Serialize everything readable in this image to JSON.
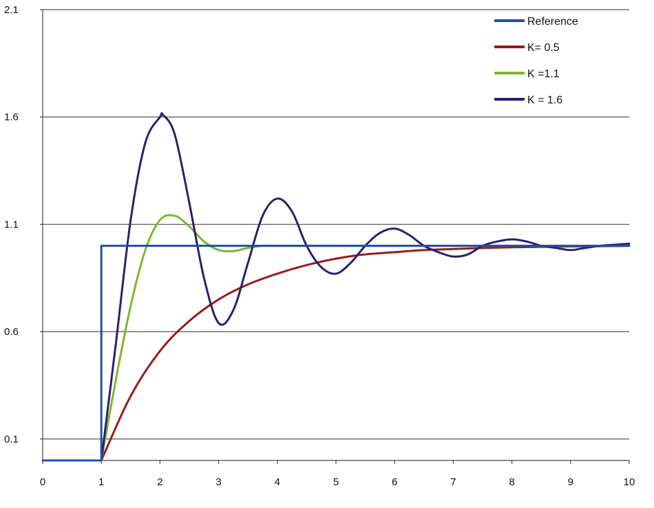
{
  "chart_data": {
    "type": "line",
    "title": "",
    "xlabel": "",
    "ylabel": "",
    "xlim": [
      0,
      10
    ],
    "ylim": [
      0,
      2.1
    ],
    "x_ticks": [
      0,
      1,
      2,
      3,
      4,
      5,
      6,
      7,
      8,
      9,
      10
    ],
    "x_tick_labels": [
      "0",
      "1",
      "2",
      "3",
      "4",
      "5",
      "6",
      "7",
      "8",
      "9",
      "10"
    ],
    "y_ticks": [
      0.1,
      0.6,
      1.1,
      1.6,
      2.1
    ],
    "y_tick_labels": [
      "0.1",
      "0.6",
      "1.1",
      "1.6",
      "2.1"
    ],
    "grid": "horizontal",
    "legend_position": "top-right",
    "series": [
      {
        "name": "Reference",
        "color": "#1f4fa8",
        "x": [
          0,
          1,
          1,
          10
        ],
        "y": [
          0,
          0,
          1,
          1
        ]
      },
      {
        "name": "K= 0.5",
        "color": "#9c1a1a",
        "x": [
          1,
          1.5,
          2,
          2.5,
          3,
          3.5,
          4,
          4.5,
          5,
          5.5,
          6,
          6.5,
          7,
          7.5,
          8,
          8.5,
          9,
          9.5,
          10
        ],
        "y": [
          0,
          0.3,
          0.51,
          0.65,
          0.75,
          0.82,
          0.87,
          0.91,
          0.94,
          0.96,
          0.97,
          0.98,
          0.985,
          0.99,
          0.993,
          0.995,
          0.997,
          0.998,
          1.0
        ]
      },
      {
        "name": "K =1.1",
        "color": "#7cb82f",
        "x": [
          1,
          1.25,
          1.5,
          1.75,
          2,
          2.25,
          2.5,
          2.75,
          3,
          3.25,
          3.5,
          3.75,
          4,
          5,
          6,
          7,
          8,
          9,
          10
        ],
        "y": [
          0,
          0.38,
          0.72,
          0.98,
          1.12,
          1.14,
          1.09,
          1.02,
          0.98,
          0.975,
          0.99,
          1.0,
          1.0,
          1.0,
          1.0,
          1.0,
          1.0,
          1.0,
          1.0
        ]
      },
      {
        "name": "K = 1.6",
        "color": "#2b1e6e",
        "x": [
          1,
          1.25,
          1.5,
          1.75,
          2,
          2.05,
          2.25,
          2.5,
          2.75,
          3,
          3.25,
          3.5,
          3.75,
          4,
          4.25,
          4.5,
          4.75,
          5,
          5.25,
          5.5,
          5.75,
          6,
          6.25,
          6.5,
          6.75,
          7,
          7.25,
          7.5,
          7.75,
          8,
          8.25,
          8.5,
          8.75,
          9,
          9.25,
          9.5,
          9.75,
          10
        ],
        "y": [
          0,
          0.55,
          1.12,
          1.48,
          1.6,
          1.61,
          1.52,
          1.2,
          0.85,
          0.64,
          0.7,
          0.92,
          1.14,
          1.22,
          1.16,
          1.0,
          0.9,
          0.87,
          0.92,
          1.0,
          1.06,
          1.08,
          1.05,
          1.0,
          0.97,
          0.95,
          0.96,
          1.0,
          1.02,
          1.03,
          1.02,
          1.0,
          0.99,
          0.98,
          0.99,
          1.0,
          1.005,
          1.01
        ]
      }
    ]
  }
}
